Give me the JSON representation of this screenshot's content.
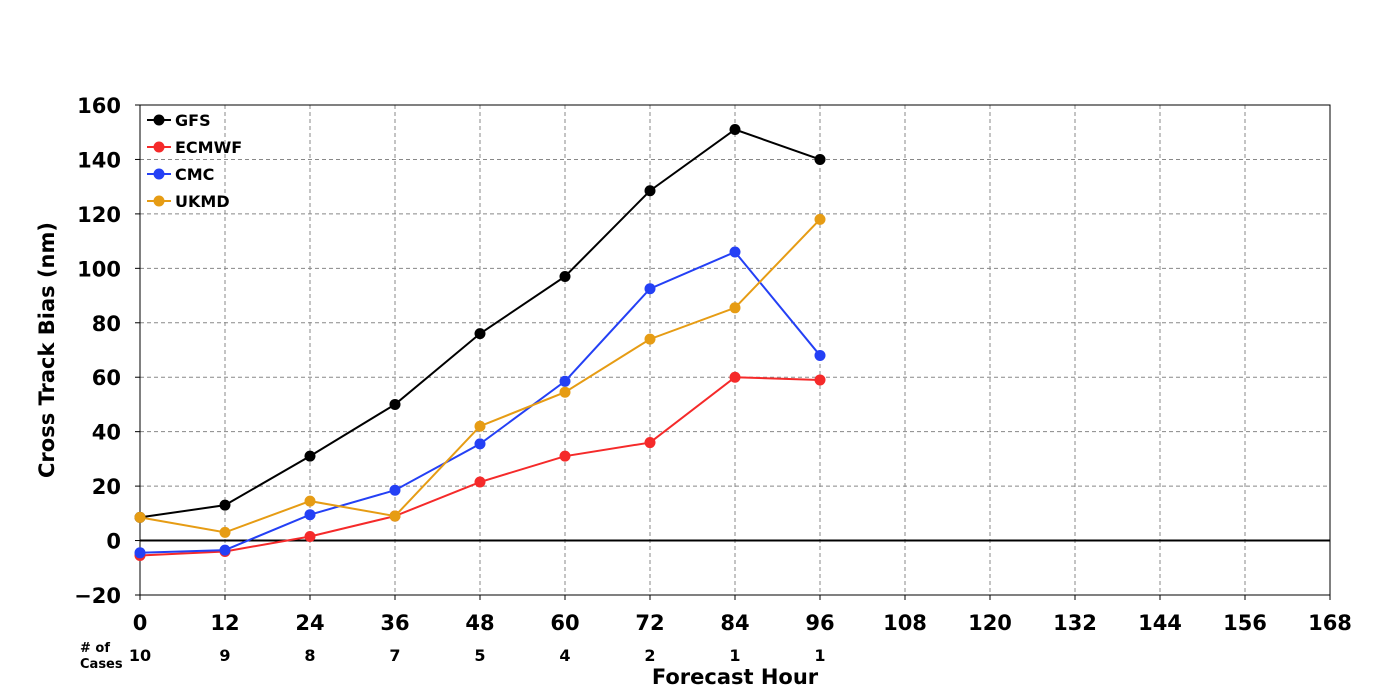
{
  "chart_data": {
    "type": "line",
    "title": "",
    "xlabel": "Forecast Hour",
    "ylabel": "Cross Track Bias (nm)",
    "xlim": [
      0,
      168
    ],
    "ylim": [
      -20,
      160
    ],
    "x_ticks": [
      0,
      12,
      24,
      36,
      48,
      60,
      72,
      84,
      96,
      108,
      120,
      132,
      144,
      156,
      168
    ],
    "y_ticks": [
      -20,
      0,
      20,
      40,
      60,
      80,
      100,
      120,
      140,
      160
    ],
    "x_tick_labels": [
      "0",
      "12",
      "24",
      "36",
      "48",
      "60",
      "72",
      "84",
      "96",
      "108",
      "120",
      "132",
      "144",
      "156",
      "168"
    ],
    "y_tick_labels": [
      "−20",
      "0",
      "20",
      "40",
      "60",
      "80",
      "100",
      "120",
      "140",
      "160"
    ],
    "grid": true,
    "zero_line": true,
    "legend_position": "top-left",
    "cases": {
      "label_line1": "# of",
      "label_line2": "Cases",
      "x": [
        0,
        12,
        24,
        36,
        48,
        60,
        72,
        84,
        96
      ],
      "values": [
        "10",
        "9",
        "8",
        "7",
        "5",
        "4",
        "2",
        "1",
        "1"
      ]
    },
    "series": [
      {
        "name": "GFS",
        "color": "#000000",
        "x": [
          0,
          12,
          24,
          36,
          48,
          60,
          72,
          84,
          96
        ],
        "values": [
          8.5,
          13,
          31,
          50,
          76,
          97,
          128.5,
          151,
          140
        ]
      },
      {
        "name": "ECMWF",
        "color": "#f52a2a",
        "x": [
          0,
          12,
          24,
          36,
          48,
          60,
          72,
          84,
          96
        ],
        "values": [
          -5.5,
          -4,
          1.5,
          9,
          21.5,
          31,
          36,
          60,
          59
        ]
      },
      {
        "name": "CMC",
        "color": "#2440f5",
        "x": [
          0,
          12,
          24,
          36,
          48,
          60,
          72,
          84,
          96
        ],
        "values": [
          -4.5,
          -3.5,
          9.5,
          18.5,
          35.5,
          58.5,
          92.5,
          106,
          68
        ]
      },
      {
        "name": "UKMD",
        "color": "#e69c14",
        "x": [
          0,
          12,
          24,
          36,
          48,
          60,
          72,
          84,
          96
        ],
        "values": [
          8.5,
          3,
          14.5,
          9,
          42,
          54.5,
          74,
          85.5,
          118
        ]
      }
    ]
  }
}
